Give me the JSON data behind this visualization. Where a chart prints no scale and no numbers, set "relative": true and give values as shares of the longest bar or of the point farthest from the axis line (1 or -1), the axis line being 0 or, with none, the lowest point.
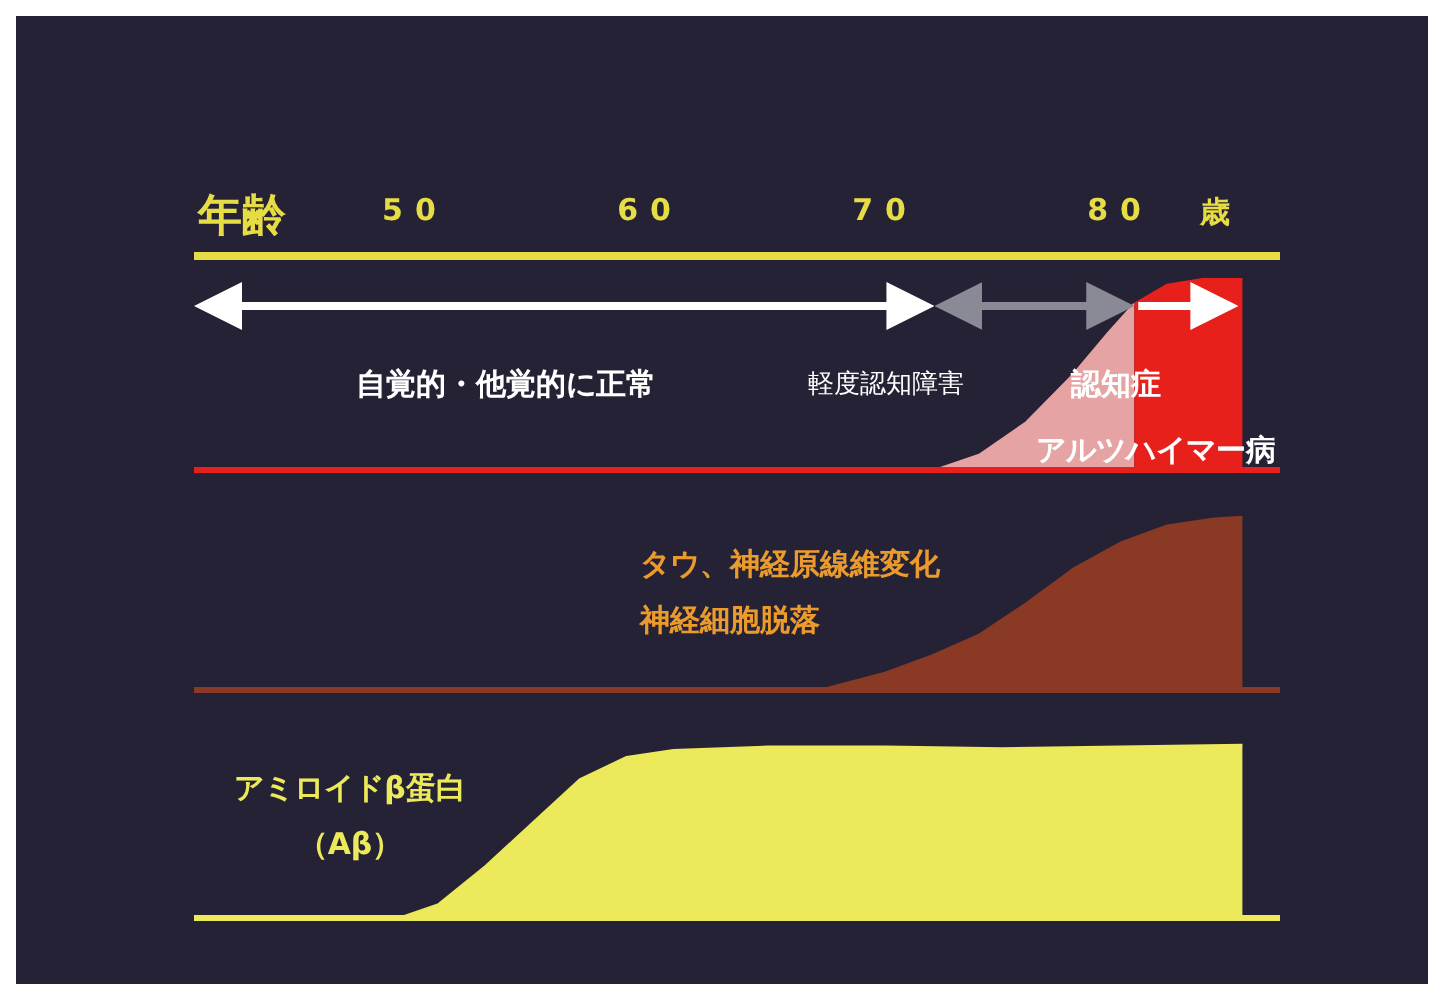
{
  "chart_data": [
    {
      "type": "area",
      "relative": true,
      "xlabel": "年齢",
      "xlim": [
        40.6,
        86.8
      ],
      "xticks": [
        50,
        60,
        70,
        80
      ],
      "tick_labels": "x",
      "x": [
        72.1,
        74,
        76,
        78,
        79.5,
        80.6,
        82,
        83.5,
        85.2
      ],
      "series": [
        {
          "color": "#e6a3a3",
          "values": [
            0,
            0.08,
            0.25,
            0.5,
            0.72,
            0.87,
            null,
            null,
            null
          ]
        },
        {
          "color": "#e8201c",
          "values": [
            null,
            null,
            null,
            null,
            null,
            0.87,
            0.97,
            1,
            1
          ]
        }
      ],
      "annotations": [
        "歳",
        "自覚的・他覚的に正常",
        "軽度認知障害",
        "認知症",
        "アルツハイマー病"
      ]
    },
    {
      "type": "area",
      "relative": true,
      "xlim": [
        40.6,
        86.8
      ],
      "tick_labels": false,
      "x": [
        67.2,
        70,
        72,
        74,
        76,
        78,
        80,
        82,
        84,
        85.2
      ],
      "series": [
        {
          "color": "#8a3a24",
          "values": [
            0,
            0.1,
            0.2,
            0.32,
            0.5,
            0.7,
            0.85,
            0.95,
            0.99,
            1
          ]
        }
      ],
      "annotations": [
        "タウ、神経原線維変化",
        "神経細胞脱落"
      ]
    },
    {
      "type": "area",
      "relative": true,
      "xlim": [
        40.6,
        86.8
      ],
      "tick_labels": false,
      "x": [
        49.3,
        51,
        53,
        55,
        57,
        59,
        61,
        65,
        70,
        75,
        80,
        85.2
      ],
      "series": [
        {
          "color": "#ece95a",
          "values": [
            0,
            0.08,
            0.3,
            0.55,
            0.8,
            0.93,
            0.97,
            0.99,
            0.99,
            0.98,
            0.99,
            1
          ]
        }
      ],
      "annotations": [
        "アミロイドβ蛋白",
        "（Aβ）"
      ]
    }
  ]
}
